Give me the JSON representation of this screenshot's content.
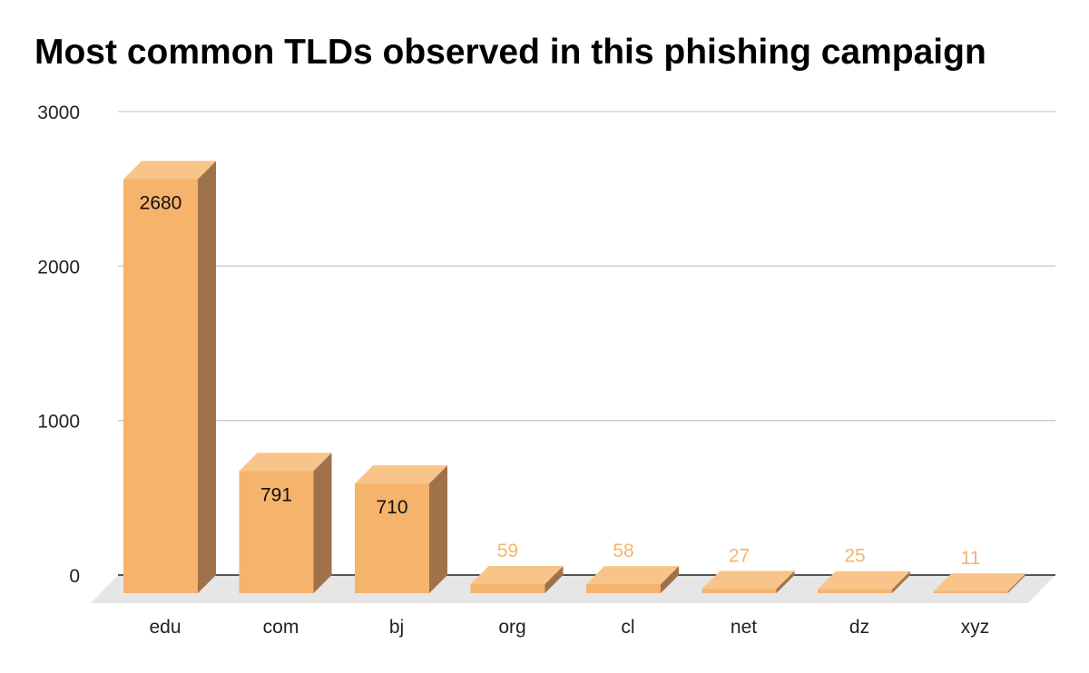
{
  "chart_data": {
    "type": "bar",
    "title": "Most common TLDs observed in this phishing campaign",
    "categories": [
      "edu",
      "com",
      "bj",
      "org",
      "cl",
      "net",
      "dz",
      "xyz"
    ],
    "values": [
      2680,
      791,
      710,
      59,
      58,
      27,
      25,
      11
    ],
    "ylim": [
      0,
      3000
    ],
    "yticks": [
      0,
      1000,
      2000,
      3000
    ],
    "grid": true,
    "style": "3d",
    "colors": {
      "bar_front": "#f5b36c",
      "bar_top": "#f8c48a",
      "bar_side": "#a0724a",
      "floor": "#e6e6e6",
      "gridline": "#cccccc",
      "axis": "#222222",
      "label_outside": "#f4b46c"
    }
  }
}
